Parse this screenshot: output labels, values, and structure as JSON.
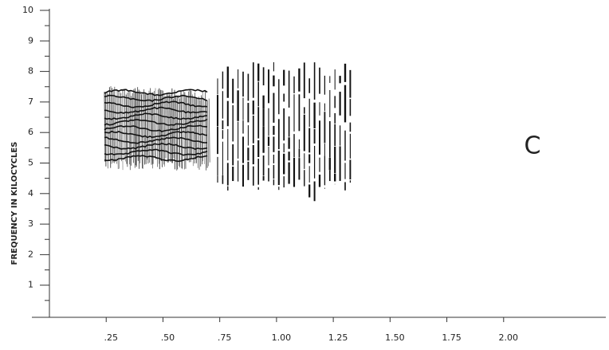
{
  "chart_data": {
    "type": "spectrogram",
    "ylabel": "FREQUENCY IN KILOCYCLES",
    "annotation": "C",
    "xlim": [
      0,
      2.45
    ],
    "ylim": [
      0,
      10
    ],
    "xticks": [
      {
        "value": 0.25,
        "label": ".25"
      },
      {
        "value": 0.5,
        "label": ".50"
      },
      {
        "value": 0.75,
        "label": ".75"
      },
      {
        "value": 1.0,
        "label": "1.00"
      },
      {
        "value": 1.25,
        "label": "1.25"
      },
      {
        "value": 1.5,
        "label": "1.50"
      },
      {
        "value": 1.75,
        "label": "1.75"
      },
      {
        "value": 2.0,
        "label": "2.00"
      }
    ],
    "yticks": [
      1,
      2,
      3,
      4,
      5,
      6,
      7,
      8,
      9,
      10
    ],
    "yminor_ticks": [
      0.5,
      1.5,
      2.5,
      3.5,
      4.5,
      5.5,
      6.5,
      7.5,
      8.5,
      9.5
    ],
    "color": "#111111"
  }
}
